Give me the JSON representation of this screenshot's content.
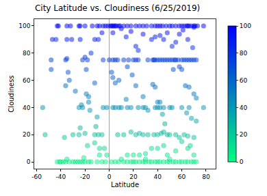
{
  "chart_data": {
    "type": "scatter",
    "title": "City Latitude vs. Cloudiness (6/25/2019)",
    "x_label": "Latitude",
    "y_label": "Cloudiness",
    "x": [
      -43,
      -42,
      -35,
      -32,
      -25,
      -24,
      -20,
      -14,
      -10,
      -8,
      -5,
      -3,
      -1,
      1,
      2,
      3,
      4,
      5,
      6,
      8,
      9,
      12,
      15,
      18,
      22,
      25,
      28,
      31,
      35,
      38,
      40,
      42,
      44,
      47,
      50,
      52,
      55,
      58,
      60,
      62,
      64,
      65,
      66,
      68,
      70,
      71,
      73,
      78,
      -47,
      -44,
      -35,
      -31,
      -24,
      -12,
      -9,
      -6,
      3,
      10,
      14,
      18,
      22,
      28,
      35,
      38,
      42,
      45,
      48,
      52,
      55,
      58,
      61,
      65,
      70,
      69,
      -48,
      -36,
      -35,
      -22,
      -20,
      -18,
      -5,
      0,
      3,
      5,
      7,
      12,
      16,
      20,
      22,
      24,
      32,
      36,
      37,
      38,
      40,
      42,
      44,
      46,
      48,
      50,
      52,
      54,
      55,
      57,
      60,
      62,
      64,
      66,
      68,
      70,
      72,
      -48,
      -19,
      -15,
      -12,
      -36,
      -33,
      -34,
      -28,
      -23,
      -19,
      -17,
      -17,
      -16,
      -10,
      -11,
      2,
      3,
      5,
      8,
      15,
      19,
      22,
      24,
      28,
      32,
      36,
      38,
      40,
      42,
      44,
      46,
      48,
      53,
      58,
      60,
      63,
      66,
      70,
      72,
      78,
      72,
      64,
      66,
      68,
      -55,
      -25,
      -22,
      -5,
      -2,
      3,
      5,
      8,
      10,
      15,
      18,
      24,
      28,
      30,
      38,
      40,
      42,
      45,
      50,
      52,
      60,
      14,
      -53,
      -37,
      -30,
      -25,
      -24,
      -20,
      -12,
      -9,
      -6,
      7,
      12,
      18,
      22,
      25,
      28,
      32,
      37,
      40,
      43,
      45,
      50,
      55,
      58,
      62,
      65,
      70,
      -18,
      -8,
      -4,
      -2,
      15,
      20,
      25,
      30,
      35,
      40,
      45,
      48,
      55,
      60,
      65,
      67,
      70,
      -12,
      -43,
      -41,
      -40,
      -38,
      -36,
      -33,
      -30,
      -28,
      -26,
      -24,
      -22,
      -20,
      -17,
      -15,
      -10,
      -6,
      -3,
      2,
      5,
      8,
      12,
      15,
      18,
      20,
      22,
      25,
      28,
      30,
      33,
      35,
      38,
      40,
      42,
      45,
      48,
      50,
      53,
      55,
      58,
      60,
      63,
      65,
      68,
      70,
      72,
      -8,
      -21,
      -35,
      10,
      30,
      50
    ],
    "values": [
      100,
      100,
      100,
      100,
      100,
      100,
      100,
      100,
      100,
      100,
      100,
      100,
      100,
      100,
      100,
      100,
      100,
      100,
      100,
      100,
      100,
      100,
      100,
      100,
      100,
      100,
      100,
      100,
      100,
      100,
      100,
      100,
      100,
      100,
      100,
      100,
      100,
      100,
      100,
      100,
      100,
      100,
      100,
      100,
      100,
      100,
      100,
      100,
      90,
      90,
      90,
      90,
      90,
      90,
      90,
      95,
      95,
      98,
      92,
      96,
      85,
      94,
      90,
      92,
      93,
      90,
      95,
      85,
      88,
      94,
      97,
      90,
      99,
      84,
      75,
      75,
      76,
      75,
      77,
      75,
      75,
      75,
      75,
      75,
      75,
      75,
      75,
      75,
      75,
      75,
      75,
      75,
      75,
      75,
      75,
      75,
      75,
      75,
      75,
      75,
      75,
      75,
      75,
      75,
      75,
      75,
      75,
      75,
      75,
      75,
      75,
      68,
      68,
      80,
      58,
      56,
      60,
      66,
      52,
      42,
      50,
      48,
      44,
      38,
      33,
      26,
      66,
      62,
      58,
      60,
      70,
      64,
      56,
      82,
      48,
      38,
      57,
      55,
      44,
      44,
      35,
      28,
      20,
      68,
      70,
      68,
      56,
      55,
      50,
      47,
      40,
      30,
      36,
      40,
      32,
      40,
      40,
      40,
      40,
      40,
      40,
      40,
      40,
      40,
      40,
      40,
      40,
      40,
      40,
      40,
      40,
      40,
      40,
      40,
      40,
      40,
      46,
      20,
      18,
      20,
      20,
      25,
      21,
      20,
      20,
      20,
      20,
      20,
      22,
      20,
      21,
      20,
      20,
      20,
      20,
      21,
      22,
      20,
      20,
      18,
      20,
      19,
      18,
      12,
      10,
      10,
      5,
      5,
      5,
      5,
      6,
      10,
      10,
      12,
      5,
      8,
      15,
      10,
      12,
      5,
      14,
      0,
      0,
      0,
      0,
      0,
      0,
      0,
      0,
      0,
      0,
      0,
      0,
      0,
      0,
      0,
      0,
      0,
      0,
      0,
      0,
      0,
      0,
      0,
      0,
      0,
      0,
      0,
      0,
      0,
      0,
      0,
      0,
      0,
      0,
      0,
      0,
      0,
      0,
      0,
      0,
      0,
      0,
      0,
      0,
      0,
      5,
      3,
      2,
      2,
      2,
      2
    ],
    "xlim": [
      -62,
      88
    ],
    "xticks": [
      -60,
      -40,
      -20,
      0,
      20,
      40,
      60,
      80
    ],
    "ylim": [
      -5,
      105
    ],
    "yticks": [
      0,
      20,
      40,
      60,
      80,
      100
    ],
    "color_range": [
      0,
      100
    ],
    "color_ticks": [
      0,
      20,
      40,
      60,
      80,
      100
    ],
    "vline": 0,
    "grid": false,
    "marker": "circle"
  }
}
